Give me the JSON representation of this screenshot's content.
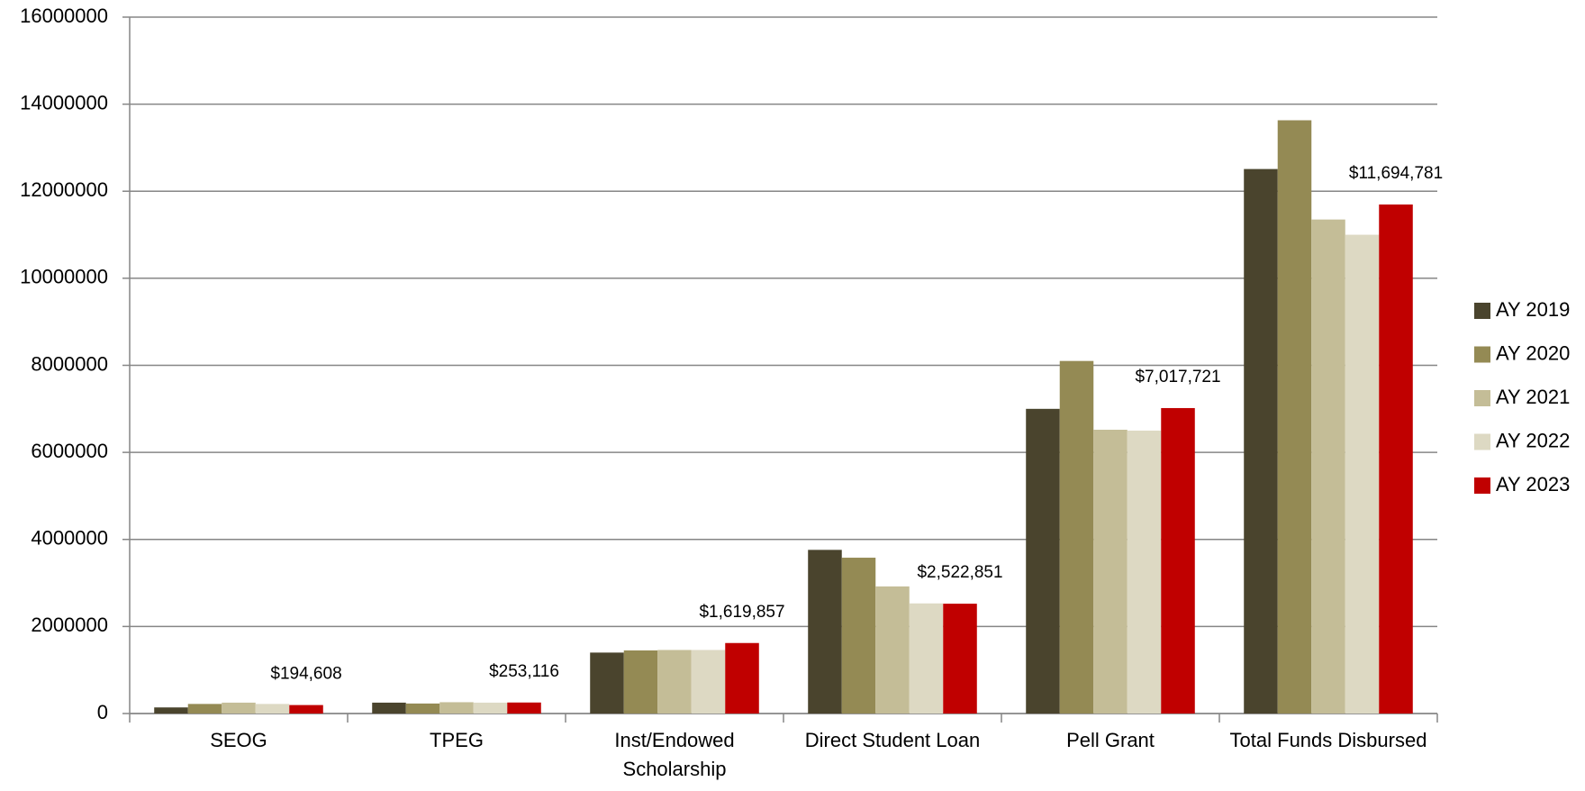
{
  "chart_data": {
    "type": "bar",
    "categories": [
      "SEOG",
      "TPEG",
      "Inst/Endowed Scholarship",
      "Direct Student Loan",
      "Pell Grant",
      "Total Funds Disbursed"
    ],
    "series": [
      {
        "name": "AY 2019",
        "color": "#4a442d",
        "values": [
          140000,
          250000,
          1400000,
          3760000,
          7000000,
          12510000
        ]
      },
      {
        "name": "AY 2020",
        "color": "#948a54",
        "values": [
          220000,
          230000,
          1450000,
          3580000,
          8100000,
          13630000
        ]
      },
      {
        "name": "AY 2021",
        "color": "#c4bd97",
        "values": [
          250000,
          260000,
          1460000,
          2920000,
          6520000,
          11350000
        ]
      },
      {
        "name": "AY 2022",
        "color": "#ddd9c3",
        "values": [
          220000,
          250000,
          1460000,
          2530000,
          6500000,
          11000000
        ]
      },
      {
        "name": "AY 2023",
        "color": "#c00000",
        "values": [
          194608,
          253116,
          1619857,
          2522851,
          7017721,
          11694781
        ],
        "value_labels": [
          "$194,608",
          "$253,116",
          "$1,619,857",
          "$2,522,851",
          "$7,017,721",
          "$11,694,781"
        ]
      }
    ],
    "ylim": [
      0,
      16000000
    ],
    "yticks": [
      0,
      2000000,
      4000000,
      6000000,
      8000000,
      10000000,
      12000000,
      14000000,
      16000000
    ],
    "grid": true,
    "legend": "right"
  }
}
